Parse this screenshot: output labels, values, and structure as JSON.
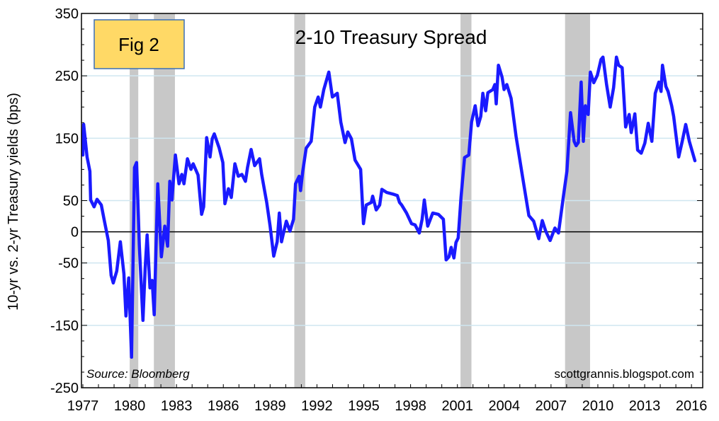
{
  "chart_data": {
    "type": "line",
    "title": "2-10 Treasury Spread",
    "badge": "Fig 2",
    "ylabel": "10-yr vs. 2-yr Treasury yields (bps)",
    "xlabel": "",
    "source": "Source: Bloomberg",
    "credit": "scottgrannis.blogspot.com",
    "xlim": [
      1976.91,
      2016.72
    ],
    "ylim": [
      -250,
      350
    ],
    "x_ticks": [
      1977,
      1980,
      1983,
      1986,
      1989,
      1992,
      1995,
      1998,
      2001,
      2004,
      2007,
      2010,
      2013,
      2016
    ],
    "y_ticks": [
      350,
      250,
      150,
      50,
      0,
      -50,
      -150,
      -250
    ],
    "gridlines": [
      250,
      150,
      50,
      -50,
      -150
    ],
    "grid": true,
    "colors": {
      "line": "#1a1aff",
      "recession": "#c8c8c8",
      "grid": "#cfe6f0",
      "badge_fill": "#ffd966",
      "badge_border": "#3b6fb5"
    },
    "recessions": [
      [
        1980.0,
        1980.55
      ],
      [
        1981.55,
        1982.9
      ],
      [
        1990.55,
        1991.25
      ],
      [
        2001.2,
        2001.9
      ],
      [
        2007.9,
        2009.5
      ]
    ],
    "series": [
      {
        "name": "2-10 Treasury Spread",
        "points": [
          [
            1977.0,
            123
          ],
          [
            1977.05,
            172
          ],
          [
            1977.27,
            120
          ],
          [
            1977.45,
            97
          ],
          [
            1977.5,
            51
          ],
          [
            1977.72,
            40
          ],
          [
            1977.91,
            52
          ],
          [
            1978.18,
            43
          ],
          [
            1978.36,
            20
          ],
          [
            1978.63,
            -14
          ],
          [
            1978.81,
            -70
          ],
          [
            1978.95,
            -82
          ],
          [
            1979.17,
            -63
          ],
          [
            1979.4,
            -16
          ],
          [
            1979.63,
            -67
          ],
          [
            1979.76,
            -135
          ],
          [
            1979.94,
            -74
          ],
          [
            1980.12,
            -201
          ],
          [
            1980.31,
            103
          ],
          [
            1980.44,
            111
          ],
          [
            1980.62,
            -22
          ],
          [
            1980.85,
            -142
          ],
          [
            1980.99,
            -59
          ],
          [
            1981.12,
            -5
          ],
          [
            1981.3,
            -90
          ],
          [
            1981.44,
            -78
          ],
          [
            1981.57,
            -133
          ],
          [
            1981.8,
            77
          ],
          [
            1982.03,
            -40
          ],
          [
            1982.25,
            9
          ],
          [
            1982.43,
            -23
          ],
          [
            1982.57,
            81
          ],
          [
            1982.71,
            51
          ],
          [
            1982.8,
            83
          ],
          [
            1982.93,
            123
          ],
          [
            1983.16,
            77
          ],
          [
            1983.34,
            92
          ],
          [
            1983.48,
            77
          ],
          [
            1983.7,
            117
          ],
          [
            1983.93,
            100
          ],
          [
            1984.07,
            109
          ],
          [
            1984.38,
            91
          ],
          [
            1984.61,
            28
          ],
          [
            1984.74,
            40
          ],
          [
            1984.93,
            151
          ],
          [
            1985.15,
            120
          ],
          [
            1985.29,
            149
          ],
          [
            1985.42,
            157
          ],
          [
            1985.74,
            134
          ],
          [
            1985.97,
            111
          ],
          [
            1986.1,
            45
          ],
          [
            1986.33,
            69
          ],
          [
            1986.51,
            55
          ],
          [
            1986.74,
            109
          ],
          [
            1986.96,
            89
          ],
          [
            1987.19,
            92
          ],
          [
            1987.42,
            81
          ],
          [
            1987.55,
            103
          ],
          [
            1987.78,
            132
          ],
          [
            1988.01,
            106
          ],
          [
            1988.32,
            117
          ],
          [
            1988.46,
            92
          ],
          [
            1988.78,
            47
          ],
          [
            1989.0,
            9
          ],
          [
            1989.23,
            -39
          ],
          [
            1989.45,
            -16
          ],
          [
            1989.59,
            30
          ],
          [
            1989.73,
            -16
          ],
          [
            1989.82,
            -6
          ],
          [
            1990.04,
            17
          ],
          [
            1990.27,
            1
          ],
          [
            1990.5,
            20
          ],
          [
            1990.63,
            77
          ],
          [
            1990.86,
            89
          ],
          [
            1990.95,
            66
          ],
          [
            1991.09,
            97
          ],
          [
            1991.31,
            134
          ],
          [
            1991.63,
            145
          ],
          [
            1991.86,
            200
          ],
          [
            1992.08,
            216
          ],
          [
            1992.22,
            200
          ],
          [
            1992.44,
            228
          ],
          [
            1992.76,
            256
          ],
          [
            1992.99,
            216
          ],
          [
            1993.3,
            222
          ],
          [
            1993.53,
            176
          ],
          [
            1993.8,
            143
          ],
          [
            1993.98,
            160
          ],
          [
            1994.21,
            149
          ],
          [
            1994.44,
            115
          ],
          [
            1994.8,
            100
          ],
          [
            1994.98,
            13
          ],
          [
            1995.16,
            43
          ],
          [
            1995.48,
            47
          ],
          [
            1995.57,
            57
          ],
          [
            1995.8,
            35
          ],
          [
            1996.02,
            43
          ],
          [
            1996.16,
            68
          ],
          [
            1996.47,
            63
          ],
          [
            1996.93,
            60
          ],
          [
            1997.15,
            58
          ],
          [
            1997.29,
            47
          ],
          [
            1997.43,
            43
          ],
          [
            1997.74,
            30
          ],
          [
            1998.06,
            13
          ],
          [
            1998.29,
            11
          ],
          [
            1998.56,
            -2
          ],
          [
            1998.74,
            20
          ],
          [
            1998.88,
            51
          ],
          [
            1999.1,
            9
          ],
          [
            1999.42,
            30
          ],
          [
            1999.78,
            28
          ],
          [
            2000.1,
            20
          ],
          [
            2000.28,
            -45
          ],
          [
            2000.46,
            -40
          ],
          [
            2000.6,
            -25
          ],
          [
            2000.78,
            -42
          ],
          [
            2000.91,
            -17
          ],
          [
            2001.05,
            -10
          ],
          [
            2001.23,
            55
          ],
          [
            2001.46,
            119
          ],
          [
            2001.73,
            123
          ],
          [
            2001.91,
            176
          ],
          [
            2002.14,
            202
          ],
          [
            2002.32,
            170
          ],
          [
            2002.5,
            185
          ],
          [
            2002.63,
            222
          ],
          [
            2002.81,
            194
          ],
          [
            2002.95,
            223
          ],
          [
            2003.27,
            228
          ],
          [
            2003.4,
            236
          ],
          [
            2003.49,
            205
          ],
          [
            2003.63,
            267
          ],
          [
            2003.86,
            248
          ],
          [
            2003.99,
            228
          ],
          [
            2004.17,
            236
          ],
          [
            2004.44,
            214
          ],
          [
            2004.76,
            153
          ],
          [
            2005.22,
            81
          ],
          [
            2005.58,
            26
          ],
          [
            2005.89,
            17
          ],
          [
            2006.21,
            -11
          ],
          [
            2006.44,
            18
          ],
          [
            2006.66,
            1
          ],
          [
            2006.94,
            -14
          ],
          [
            2007.25,
            6
          ],
          [
            2007.48,
            -2
          ],
          [
            2007.8,
            58
          ],
          [
            2008.02,
            97
          ],
          [
            2008.25,
            191
          ],
          [
            2008.48,
            145
          ],
          [
            2008.61,
            138
          ],
          [
            2008.75,
            143
          ],
          [
            2008.93,
            240
          ],
          [
            2009.07,
            145
          ],
          [
            2009.2,
            202
          ],
          [
            2009.38,
            188
          ],
          [
            2009.52,
            256
          ],
          [
            2009.74,
            239
          ],
          [
            2009.97,
            251
          ],
          [
            2010.2,
            276
          ],
          [
            2010.33,
            280
          ],
          [
            2010.56,
            236
          ],
          [
            2010.79,
            200
          ],
          [
            2011.01,
            231
          ],
          [
            2011.19,
            280
          ],
          [
            2011.33,
            267
          ],
          [
            2011.56,
            263
          ],
          [
            2011.78,
            168
          ],
          [
            2012.01,
            188
          ],
          [
            2012.14,
            159
          ],
          [
            2012.37,
            189
          ],
          [
            2012.55,
            131
          ],
          [
            2012.78,
            126
          ],
          [
            2013.01,
            142
          ],
          [
            2013.23,
            174
          ],
          [
            2013.46,
            145
          ],
          [
            2013.68,
            222
          ],
          [
            2013.91,
            240
          ],
          [
            2014.05,
            225
          ],
          [
            2014.14,
            267
          ],
          [
            2014.36,
            233
          ],
          [
            2014.5,
            225
          ],
          [
            2014.73,
            202
          ],
          [
            2014.86,
            185
          ],
          [
            2015.18,
            120
          ],
          [
            2015.41,
            145
          ],
          [
            2015.63,
            172
          ],
          [
            2015.86,
            145
          ],
          [
            2016.22,
            114
          ]
        ]
      }
    ]
  }
}
